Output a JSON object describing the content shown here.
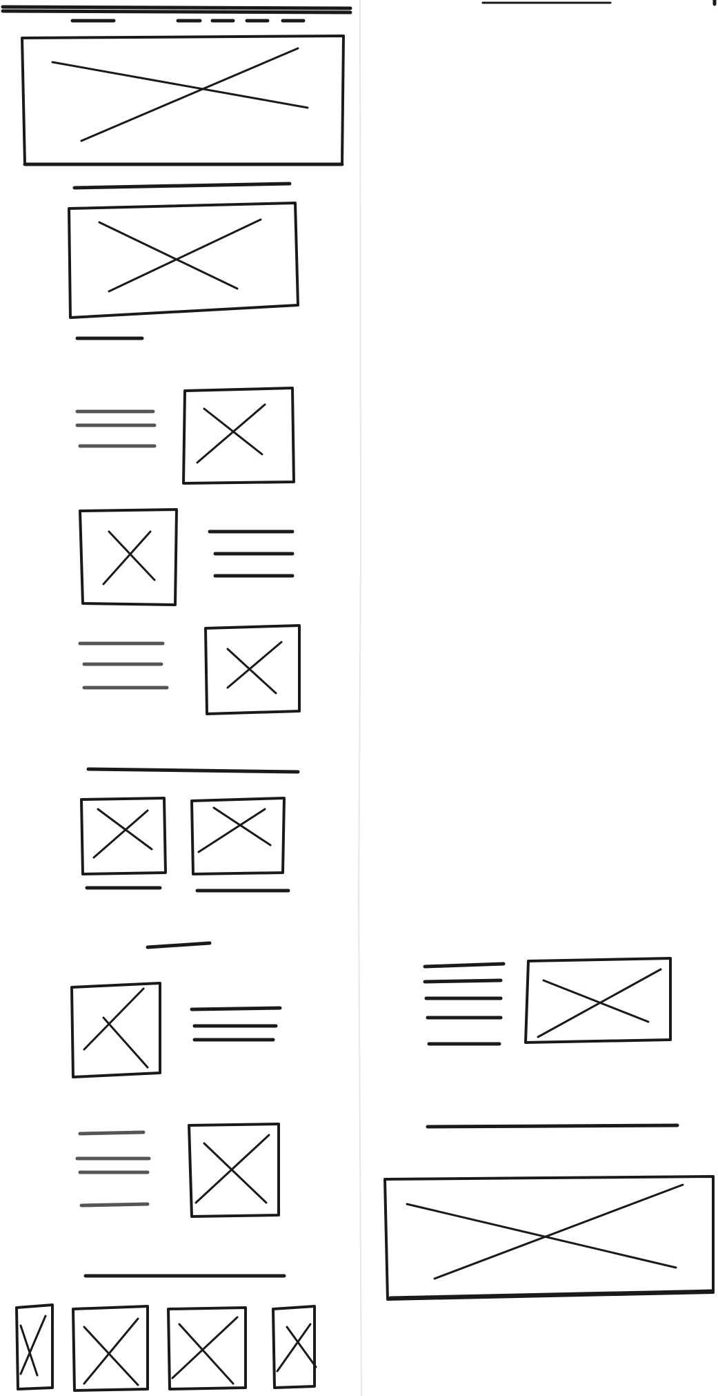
{
  "sketch": {
    "description_free": true,
    "stroke_color": "#1a1a1a",
    "background": "#ffffff"
  }
}
